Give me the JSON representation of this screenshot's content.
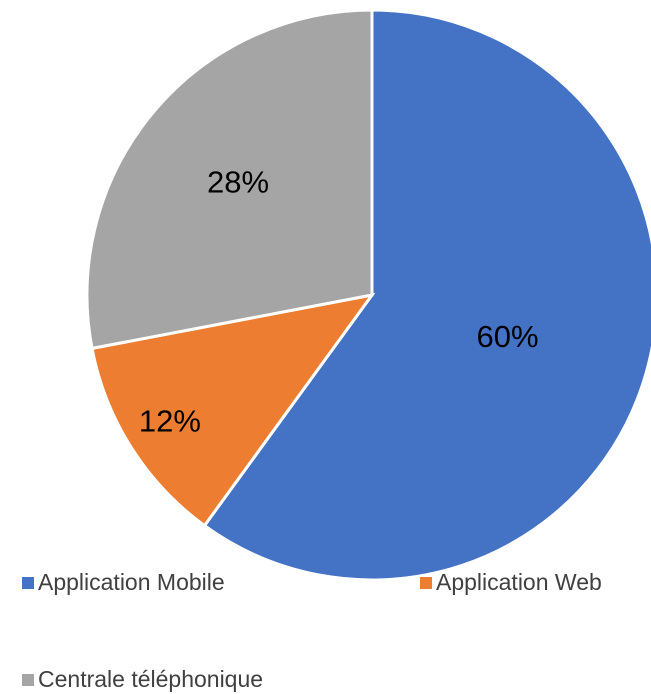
{
  "chart_data": {
    "type": "pie",
    "categories": [
      "Application Mobile",
      "Application Web",
      "Centrale téléphonique"
    ],
    "values": [
      60,
      12,
      28
    ],
    "value_labels": [
      "60%",
      "12%",
      "28%"
    ],
    "colors": [
      "#4472c4",
      "#ed7d31",
      "#a5a5a5"
    ]
  }
}
